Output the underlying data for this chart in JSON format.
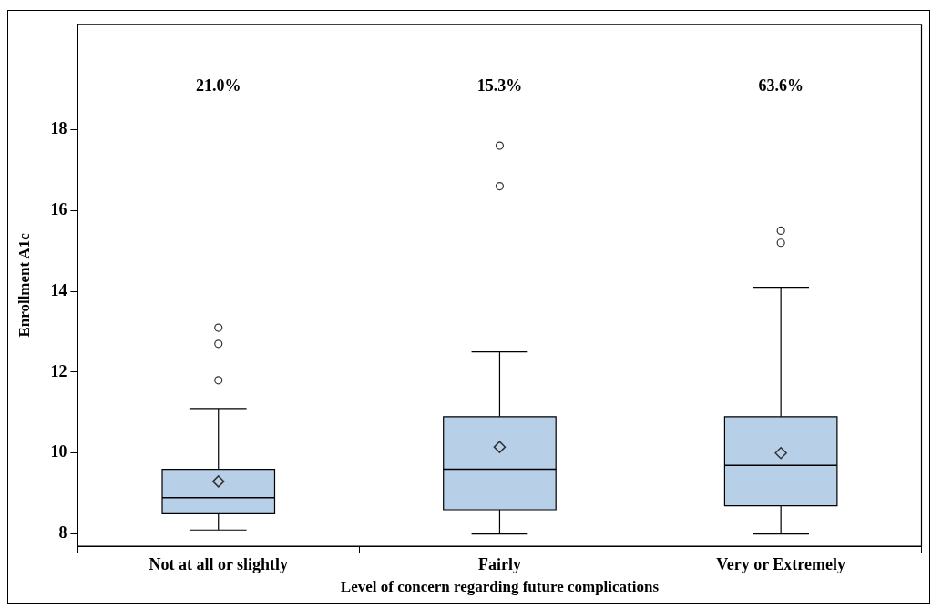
{
  "chart_data": {
    "type": "box",
    "xlabel": "Level of concern regarding future complications",
    "ylabel": "Enrollment A1c",
    "categories": [
      "Not at all or slightly",
      "Fairly",
      "Very or Extremely"
    ],
    "color": "#b8cfe8",
    "boxes": [
      {
        "low": 8.1,
        "q1": 8.5,
        "median": 8.9,
        "q3": 9.6,
        "high": 11.1,
        "mean": 9.3,
        "outliers": [
          11.8,
          12.7,
          13.1
        ]
      },
      {
        "low": 8.0,
        "q1": 8.6,
        "median": 9.6,
        "q3": 10.9,
        "high": 12.5,
        "mean": 10.15,
        "outliers": [
          16.6,
          17.6
        ]
      },
      {
        "low": 8.0,
        "q1": 8.7,
        "median": 9.7,
        "q3": 10.9,
        "high": 14.1,
        "mean": 10.0,
        "outliers": [
          15.2,
          15.5
        ]
      }
    ],
    "ylim": [
      7.7,
      20.6
    ],
    "yticks": [
      8,
      10,
      12,
      14,
      16,
      18
    ],
    "grid": false,
    "legend": false,
    "annotations": [
      "21.0%",
      "15.3%",
      "63.6%"
    ]
  }
}
